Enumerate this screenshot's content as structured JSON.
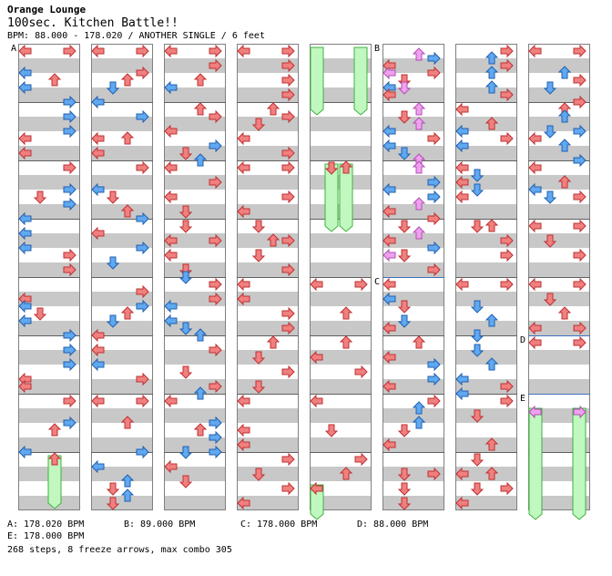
{
  "header": {
    "artist": "Orange Lounge",
    "title": "100sec. Kitchen Battle!!",
    "info": "BPM: 88.000 - 178.020 / ANOTHER SINGLE / 6 feet"
  },
  "section_markers": [
    "A",
    "B",
    "C",
    "D",
    "E"
  ],
  "bpm_legend": [
    {
      "text": "A: 178.020 BPM"
    },
    {
      "text": "B: 89.000 BPM"
    },
    {
      "text": "C: 178.000 BPM"
    },
    {
      "text": "D: 88.000 BPM"
    },
    {
      "text": "E: 178.000 BPM"
    }
  ],
  "summary": "268 steps, 8 freeze arrows, max combo 305",
  "colors": {
    "quarter_arrow": "#f08080",
    "eighth_arrow": "#60a8f0",
    "sixteenth_arrow": "#f0a0f0",
    "freeze_fill": "#c0f8c0",
    "freeze_border": "#40b040",
    "measure_band": "#c8c8c8"
  }
}
